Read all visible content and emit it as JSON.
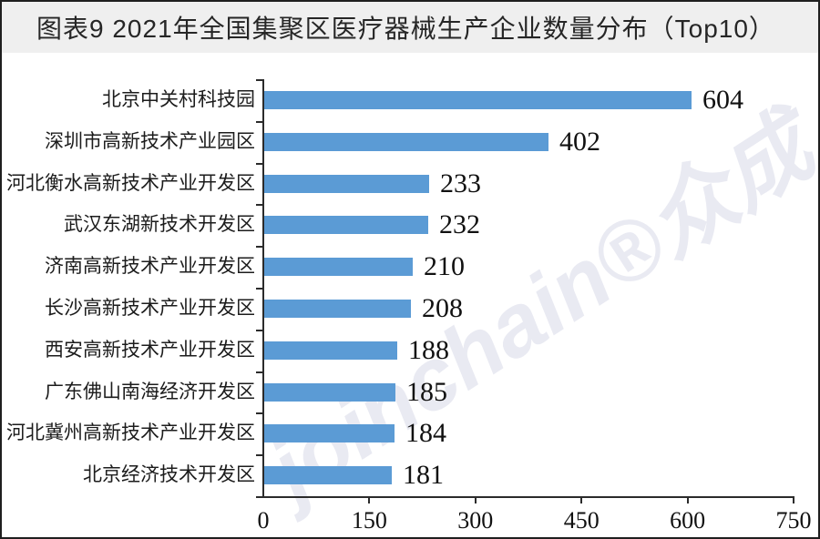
{
  "header": {
    "title": "图表9 2021年全国集聚区医疗器械生产企业数量分布（Top10）"
  },
  "watermark": {
    "text": "joinchain®众成"
  },
  "chart_data": {
    "type": "bar",
    "orientation": "horizontal",
    "title": "图表9 2021年全国集聚区医疗器械生产企业数量分布（Top10）",
    "categories": [
      "北京中关村科技园",
      "深圳市高新技术产业园区",
      "河北衡水高新技术产业开发区",
      "武汉东湖新技术开发区",
      "济南高新技术产业开发区",
      "长沙高新技术产业开发区",
      "西安高新技术产业开发区",
      "广东佛山南海经济开发区",
      "河北冀州高新技术产业开发区",
      "北京经济技术开发区"
    ],
    "values": [
      604,
      402,
      233,
      232,
      210,
      208,
      188,
      185,
      184,
      181
    ],
    "xlabel": "",
    "ylabel": "",
    "xlim": [
      0,
      750
    ],
    "x_ticks": [
      0,
      150,
      300,
      450,
      600,
      750
    ],
    "grid": false,
    "legend": "none",
    "value_labels": true,
    "colors": {
      "bar": "#5B9BD5",
      "axis": "#2b2b2b",
      "text": "#1c1c1c",
      "title_band_bg": "#efefef",
      "page_border": "#1f1f1f"
    }
  }
}
